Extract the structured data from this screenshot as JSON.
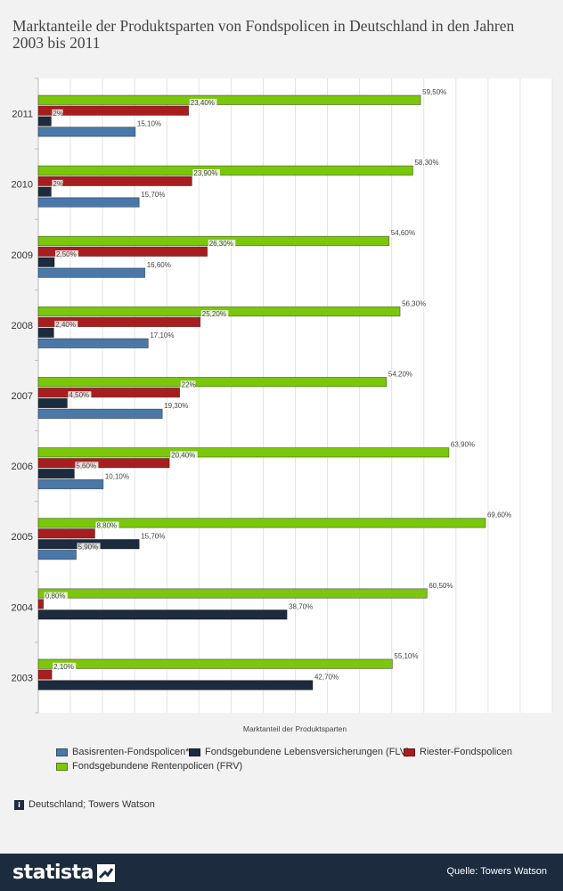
{
  "title": "Marktanteile der Produktsparten von Fondspolicen in Deutschland in den Jahren 2003 bis 2011",
  "chart_data": {
    "type": "bar",
    "orientation": "horizontal",
    "title": "Marktanteile der Produktsparten von Fondspolicen in Deutschland in den Jahren 2003 bis 2011",
    "xlabel": "Marktanteil der Produktsparten",
    "ylabel": "",
    "xlim": [
      0,
      80
    ],
    "grid": true,
    "legend_position": "bottom",
    "categories": [
      "2011",
      "2010",
      "2009",
      "2008",
      "2007",
      "2006",
      "2005",
      "2004",
      "2003"
    ],
    "series": [
      {
        "name": "Fondsgebundene Rentenpolicen (FRV)",
        "color": "#7ac70c",
        "values": [
          59.5,
          58.3,
          54.6,
          56.3,
          54.2,
          63.9,
          69.6,
          60.5,
          55.1
        ],
        "labels": [
          "59,50%",
          "58,30%",
          "54,60%",
          "56,30%",
          "54,20%",
          "63,90%",
          "69,60%",
          "60,50%",
          "55,10%"
        ]
      },
      {
        "name": "Riester-Fondspolicen",
        "color": "#a81e1e",
        "values": [
          23.4,
          23.9,
          26.3,
          25.2,
          22,
          20.4,
          8.8,
          0.8,
          2.1
        ],
        "labels": [
          "23,40%",
          "23,90%",
          "26,30%",
          "25,20%",
          "22%",
          "20,40%",
          "8,80%",
          "0,80%",
          "2,10%"
        ]
      },
      {
        "name": "Fondsgebundene Lebensversicherungen (FLV)",
        "color": "#1c2b3d",
        "values": [
          2,
          2,
          2.5,
          2.4,
          4.5,
          5.6,
          15.7,
          38.7,
          42.7
        ],
        "labels": [
          "2%",
          "2%",
          "2,50%",
          "2,40%",
          "4,50%",
          "5,60%",
          "15,70%",
          "38,70%",
          "42,70%"
        ]
      },
      {
        "name": "Basisrenten-Fondspolicen*",
        "color": "#4a78a8",
        "values": [
          15.1,
          15.7,
          16.6,
          17.1,
          19.3,
          10.1,
          5.9,
          null,
          null
        ],
        "labels": [
          "15,10%",
          "15,70%",
          "16,60%",
          "17,10%",
          "19,30%",
          "10,10%",
          "5,90%",
          null,
          null
        ]
      }
    ]
  },
  "legend": [
    {
      "label": "Basisrenten-Fondspolicen*",
      "color": "#4a78a8"
    },
    {
      "label": "Fondsgebundene Lebensversicherungen (FLV)",
      "color": "#1c2b3d"
    },
    {
      "label": "Riester-Fondspolicen",
      "color": "#a81e1e"
    },
    {
      "label": "Fondsgebundene Rentenpolicen (FRV)",
      "color": "#7ac70c"
    }
  ],
  "region_note": "Deutschland; Towers Watson",
  "info_icon_glyph": "i",
  "footer": {
    "brand": "statista",
    "source": "Quelle: Towers Watson"
  }
}
